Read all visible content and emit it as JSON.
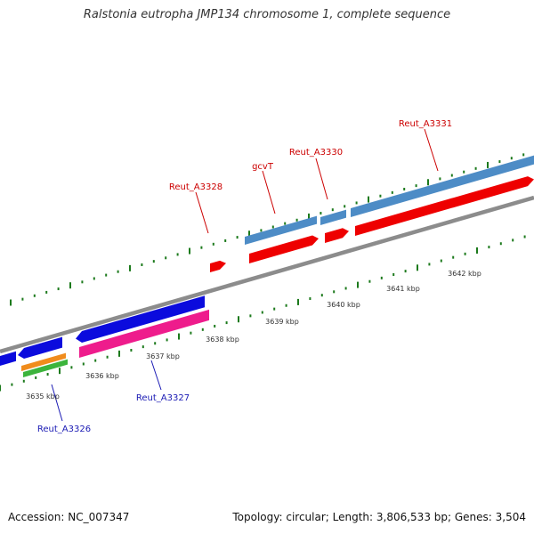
{
  "title": "Ralstonia eutropha JMP134 chromosome 1, complete sequence",
  "footer": {
    "accession": "Accession: NC_007347",
    "summary": "Topology: circular; Length: 3,806,533 bp; Genes: 3,504"
  },
  "colors": {
    "backbone": "#8c8c8c",
    "tick": "#1c7a1c",
    "forward_gene": "#4d8cc6",
    "forward_cds": "#ee0000",
    "reverse_gene": "#0b0bdd",
    "reverse_cds": "#ee1c8c",
    "reverse_orange": "#f08c1c",
    "reverse_green": "#3cb43c",
    "label_forward": "#cc0000",
    "label_reverse": "#1a1ab4"
  },
  "kbp_labels": [
    "3635 kbp",
    "3636 kbp",
    "3637 kbp",
    "3638 kbp",
    "3639 kbp",
    "3640 kbp",
    "3641 kbp",
    "3642 kbp"
  ],
  "gene_labels": [
    {
      "text": "Reut_A3331",
      "strand": "forward"
    },
    {
      "text": "Reut_A3330",
      "strand": "forward"
    },
    {
      "text": "gcvT",
      "strand": "forward"
    },
    {
      "text": "Reut_A3328",
      "strand": "forward"
    },
    {
      "text": "Reut_A3327",
      "strand": "reverse"
    },
    {
      "text": "Reut_A3326",
      "strand": "reverse"
    }
  ]
}
